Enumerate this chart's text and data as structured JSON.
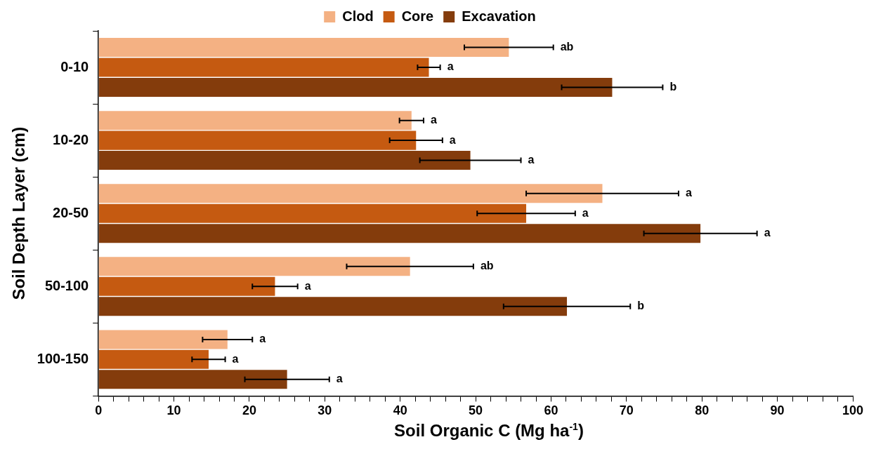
{
  "chart_data": {
    "type": "bar",
    "orientation": "horizontal",
    "xlabel": "Soil Organic C (Mg ha$^{-1}$)",
    "ylabel": "Soil Depth Layer (cm)",
    "categories": [
      "0-10",
      "10-20",
      "20-50",
      "50-100",
      "100-150"
    ],
    "series": [
      {
        "name": "Clod",
        "color": "#f4b183",
        "values": [
          54.4,
          41.5,
          66.8,
          41.3,
          17.1
        ],
        "errors": [
          5.9,
          1.6,
          10.1,
          8.4,
          3.3
        ]
      },
      {
        "name": "Core",
        "color": "#c55a11",
        "values": [
          43.8,
          42.1,
          56.7,
          23.4,
          14.6
        ],
        "errors": [
          1.5,
          3.5,
          6.5,
          3.0,
          2.2
        ]
      },
      {
        "name": "Excavation",
        "color": "#843c0c",
        "values": [
          68.1,
          49.3,
          79.8,
          62.1,
          25.0
        ],
        "errors": [
          6.7,
          6.7,
          7.5,
          8.4,
          5.6
        ]
      }
    ],
    "annotations": [
      "ab",
      "a",
      "b",
      "a",
      "a",
      "a",
      "a",
      "a",
      "a",
      "ab",
      "a",
      "b",
      "a",
      "a",
      "a"
    ],
    "xlim": [
      0,
      100
    ],
    "xticks": [
      0,
      {
        "value": 2,
        "label": null
      },
      {
        "value": 4,
        "label": null
      },
      {
        "value": 6,
        "label": null
      },
      {
        "value": 8,
        "label": null
      },
      10,
      {
        "value": 12,
        "label": null
      },
      {
        "value": 14,
        "label": null
      },
      {
        "value": 16,
        "label": null
      },
      {
        "value": 18,
        "label": null
      },
      20,
      {
        "value": 22,
        "label": null
      },
      {
        "value": 24,
        "label": null
      },
      {
        "value": 26,
        "label": null
      },
      {
        "value": 28,
        "label": null
      },
      30,
      {
        "value": 32,
        "label": null
      },
      {
        "value": 34,
        "label": null
      },
      {
        "value": 36,
        "label": null
      },
      {
        "value": 38,
        "label": null
      },
      40,
      {
        "value": 42,
        "label": null
      },
      {
        "value": 44,
        "label": null
      },
      {
        "value": 46,
        "label": null
      },
      {
        "value": 48,
        "label": null
      },
      50,
      {
        "value": 52,
        "label": null
      },
      {
        "value": 54,
        "label": null
      },
      {
        "value": 56,
        "label": null
      },
      {
        "value": 58,
        "label": null
      },
      60,
      {
        "value": 62,
        "label": null
      },
      {
        "value": 64,
        "label": null
      },
      {
        "value": 66,
        "label": null
      },
      {
        "value": 68,
        "label": null
      },
      70,
      {
        "value": 72,
        "label": null
      },
      {
        "value": 74,
        "label": null
      },
      {
        "value": 76,
        "label": null
      },
      {
        "value": 78,
        "label": null
      },
      80,
      {
        "value": 82,
        "label": null
      },
      {
        "value": 84,
        "label": null
      },
      {
        "value": 86,
        "label": null
      },
      {
        "value": 88,
        "label": null
      },
      90,
      {
        "value": 92,
        "label": null
      },
      {
        "value": 94,
        "label": null
      },
      {
        "value": 96,
        "label": null
      },
      {
        "value": 98,
        "label": null
      },
      100
    ],
    "grid": false,
    "legend": "top"
  }
}
